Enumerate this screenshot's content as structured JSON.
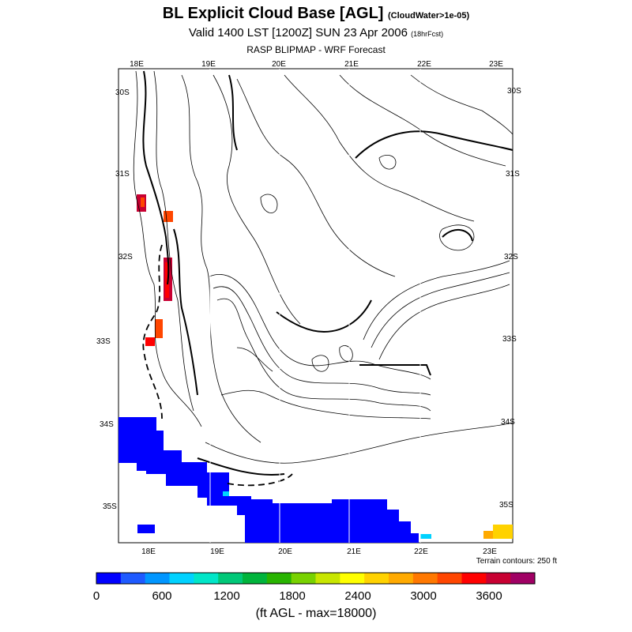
{
  "header": {
    "title": "BL Explicit Cloud Base [AGL]",
    "title_note": "(CloudWater>1e-05)",
    "valid": "Valid 1400 LST [1200Z] SUN 23 Apr 2006",
    "valid_note": "(18hrFcst)",
    "source": "RASP BLIPMAP - WRF Forecast"
  },
  "map": {
    "lon_labels": [
      "18E",
      "19E",
      "20E",
      "21E",
      "22E",
      "23E"
    ],
    "lat_labels": [
      "30S",
      "31S",
      "32S",
      "33S",
      "34S",
      "35S"
    ],
    "terrain_note": "Terrain contours: 250 ft"
  },
  "colorbar": {
    "colors": [
      "#0000ff",
      "#1e5aff",
      "#0096ff",
      "#00d2ff",
      "#00e6c8",
      "#00c878",
      "#00b43c",
      "#28b400",
      "#78d200",
      "#c8e600",
      "#ffff00",
      "#ffd200",
      "#ffaa00",
      "#ff7800",
      "#ff4600",
      "#ff0000",
      "#c80032",
      "#a00064"
    ],
    "tick_labels": [
      "0",
      "600",
      "1200",
      "1800",
      "2400",
      "3000",
      "3600"
    ],
    "units": "(ft AGL - max=18000)"
  },
  "chart_data": {
    "type": "heatmap",
    "title": "BL Explicit Cloud Base [AGL]",
    "variable": "Cloud base height above ground",
    "units": "ft AGL",
    "range": [
      0,
      3900
    ],
    "max": 18000,
    "lon_range": [
      17.6,
      23.3
    ],
    "lat_range": [
      -35.4,
      -29.9
    ],
    "contour_interval_ft": 250,
    "observed_patches": [
      {
        "region": "south coast / offshore",
        "value_ft": 0,
        "color": "#0000ff"
      },
      {
        "region": "west coast 31S-33S",
        "value_ft": 3400,
        "color": "#ff0000"
      },
      {
        "region": "southeast corner 23E 35S",
        "value_ft": 2600,
        "color": "#ffaa00"
      }
    ]
  }
}
